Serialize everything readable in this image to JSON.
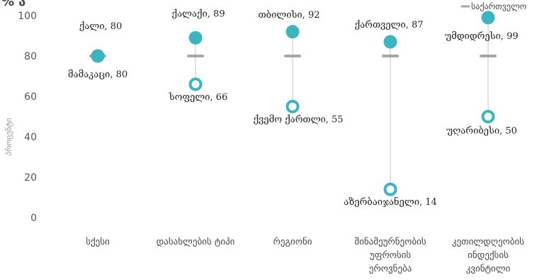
{
  "chart_data": {
    "type": "dot-range",
    "title_fragment": "% ა",
    "ylabel": "პროცენტი",
    "ylim": [
      0,
      100
    ],
    "yticks": [
      0,
      20,
      40,
      60,
      80,
      100
    ],
    "colors": {
      "range_line": "#d9d9d9",
      "high_marker": "#3ab5c1",
      "low_marker": "#3ab5c1",
      "reference_marker": "#a6a6a6"
    },
    "legend": {
      "label": "საქართველო",
      "position": "top-right"
    },
    "reference_value": 80,
    "categories": [
      {
        "label_lines": [
          "სქესი"
        ],
        "points": [
          {
            "name": "ქალი",
            "value": 80,
            "style": "filled",
            "label": "ქალი, 80"
          },
          {
            "name": "მამაკაცი",
            "value": 80,
            "style": "filled",
            "label": "მამაკაცი, 80"
          }
        ]
      },
      {
        "label_lines": [
          "დასახლების ტიპი"
        ],
        "points": [
          {
            "name": "ქალაქი",
            "value": 89,
            "style": "filled",
            "label": "ქალაქი, 89"
          },
          {
            "name": "სოფელი",
            "value": 66,
            "style": "hollow",
            "label": "სოფელი, 66"
          }
        ]
      },
      {
        "label_lines": [
          "რეგიონი"
        ],
        "points": [
          {
            "name": "თბილისი",
            "value": 92,
            "style": "filled",
            "label": "თბილისი, 92"
          },
          {
            "name": "ქვემო ქართლი",
            "value": 55,
            "style": "hollow",
            "label": "ქვემო ქართლი, 55"
          }
        ]
      },
      {
        "label_lines": [
          "შინამეურნეობის",
          "უფროსის",
          "ეროვნება"
        ],
        "points": [
          {
            "name": "ქართველი",
            "value": 87,
            "style": "filled",
            "label": "ქართველი, 87"
          },
          {
            "name": "აზერბაიჯანელი",
            "value": 14,
            "style": "hollow",
            "label": "აზერბაიჯანელი, 14"
          }
        ]
      },
      {
        "label_lines": [
          "კეთილდღეობის",
          "ინდექსის",
          "კვინტილი"
        ],
        "points": [
          {
            "name": "უმდიდრესი",
            "value": 99,
            "style": "filled",
            "label": "უმდიდრესი, 99"
          },
          {
            "name": "უღარიბესი",
            "value": 50,
            "style": "hollow",
            "label": "უღარიბესი, 50"
          }
        ]
      }
    ]
  }
}
